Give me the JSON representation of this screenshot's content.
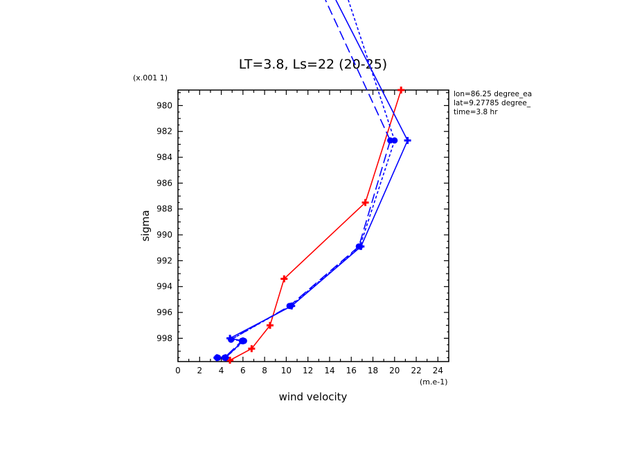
{
  "chart_data": {
    "type": "line",
    "title": "LT=3.8, Ls=22 (20-25)",
    "xlabel": "wind velocity",
    "ylabel": "sigma",
    "x_scale_label": "(m.e-1)",
    "y_scale_label": "(x.001 1)",
    "xlim": [
      0,
      25
    ],
    "ylim": [
      978.8,
      999.8
    ],
    "y_inverted": true,
    "xticks": [
      0,
      2,
      4,
      6,
      8,
      10,
      12,
      14,
      16,
      18,
      20,
      22,
      24
    ],
    "yticks": [
      980,
      982,
      984,
      986,
      988,
      990,
      992,
      994,
      996,
      998
    ],
    "annotations": [
      "lon=86.25 degree_ea",
      "lat=9.27785 degree_",
      "time=3.8 hr"
    ],
    "series": [
      {
        "color": "#ff0000",
        "style": "solid",
        "marker": "plus",
        "x": [
          20.6,
          17.3,
          9.8,
          8.5,
          6.8,
          4.8
        ],
        "y": [
          978.8,
          987.5,
          993.4,
          997.0,
          998.8,
          999.7
        ]
      },
      {
        "color": "#0000ff",
        "style": "solid",
        "marker": "plus",
        "x": [
          21.2,
          16.9,
          10.5,
          4.8,
          6.0,
          4.4,
          3.6
        ],
        "y": [
          982.7,
          990.9,
          995.5,
          998.0,
          998.2,
          999.5,
          999.5
        ]
      },
      {
        "color": "#0000ff",
        "style": "dashed",
        "marker": "circle",
        "x": [
          20.0,
          16.8,
          10.4,
          4.9,
          6.1,
          4.4,
          3.7
        ],
        "y": [
          982.7,
          990.9,
          995.5,
          998.1,
          998.2,
          999.5,
          999.5
        ]
      },
      {
        "color": "#0000ff",
        "style": "longdash",
        "marker": "circle",
        "x": [
          19.6,
          16.7,
          10.3,
          4.9,
          5.9,
          4.3,
          3.6
        ],
        "y": [
          982.7,
          990.9,
          995.5,
          998.1,
          998.2,
          999.5,
          999.5
        ]
      }
    ]
  }
}
